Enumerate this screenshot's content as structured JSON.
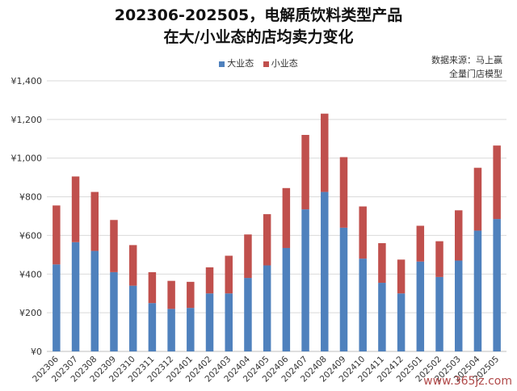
{
  "title_line1": "202306-202505，电解质饮料类型产品",
  "title_line2": "在大/小业态的店均卖力变化",
  "note_line1": "数据来源：马上赢",
  "note_line2": "全量门店模型",
  "watermark": "www.365jz.com",
  "colors": {
    "large": "#4f81bd",
    "small": "#c0504d",
    "grid": "#d9d9d9",
    "axis": "#bfbfbf"
  },
  "chart_data": {
    "type": "bar",
    "stacked": true,
    "categories": [
      "202306",
      "202307",
      "202308",
      "202309",
      "202310",
      "202311",
      "202312",
      "202401",
      "202402",
      "202403",
      "202404",
      "202405",
      "202406",
      "202407",
      "202408",
      "202409",
      "202410",
      "202411",
      "202412",
      "202501",
      "202502",
      "202503",
      "202504",
      "202505"
    ],
    "series": [
      {
        "name": "大业态",
        "color": "#4f81bd",
        "values": [
          450,
          565,
          520,
          410,
          340,
          250,
          220,
          225,
          300,
          300,
          380,
          445,
          535,
          735,
          825,
          640,
          480,
          355,
          300,
          465,
          385,
          470,
          625,
          685
        ]
      },
      {
        "name": "小业态",
        "color": "#c0504d",
        "values": [
          305,
          340,
          305,
          270,
          210,
          160,
          145,
          135,
          135,
          195,
          225,
          265,
          310,
          385,
          405,
          365,
          270,
          205,
          175,
          185,
          185,
          260,
          325,
          380
        ]
      }
    ],
    "ylim": [
      0,
      1400
    ],
    "yticks": [
      0,
      200,
      400,
      600,
      800,
      1000,
      1200,
      1400
    ],
    "ytick_labels": [
      "¥0",
      "¥200",
      "¥400",
      "¥600",
      "¥800",
      "¥1,000",
      "¥1,200",
      "¥1,400"
    ],
    "grid": true,
    "legend_position": "top-center"
  }
}
